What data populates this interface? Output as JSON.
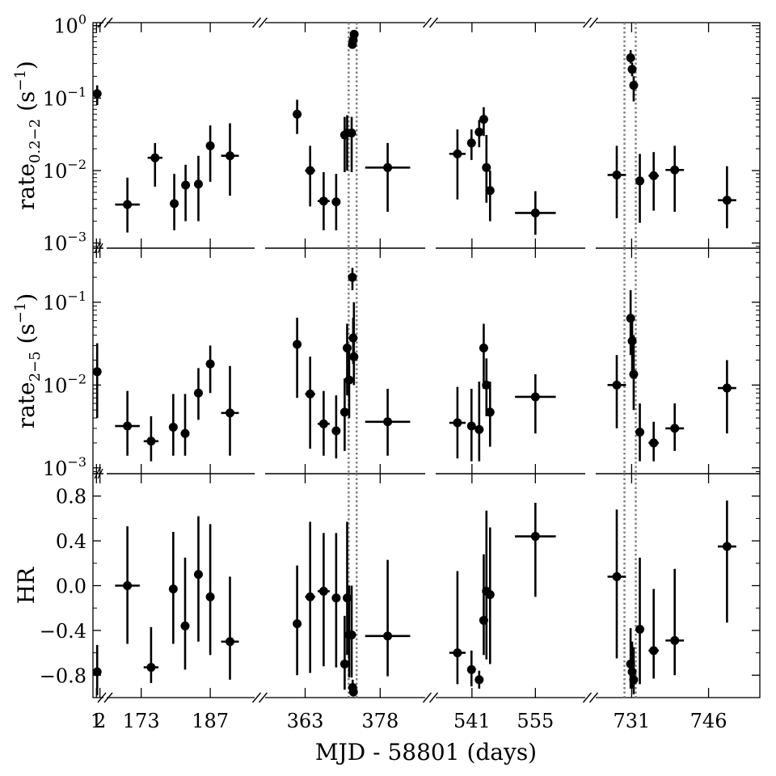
{
  "chart_data": {
    "type": "scatter",
    "xlabel": "MJD - 58801 (days)",
    "segments": [
      {
        "range": [
          0,
          3
        ],
        "ticks": [
          1,
          2
        ],
        "tick_labels": [
          "1",
          "2"
        ]
      },
      {
        "range": [
          166,
          196
        ],
        "ticks": [
          173,
          187
        ],
        "tick_labels": [
          "173",
          "187"
        ]
      },
      {
        "range": [
          355,
          387
        ],
        "ticks": [
          363,
          378
        ],
        "tick_labels": [
          "363",
          "378"
        ]
      },
      {
        "range": [
          533,
          566
        ],
        "ticks": [
          541,
          555
        ],
        "tick_labels": [
          "541",
          "555"
        ]
      },
      {
        "range": [
          724,
          756
        ],
        "ticks": [
          731,
          746
        ],
        "tick_labels": [
          "731",
          "746"
        ]
      }
    ],
    "vlines": [
      371.7,
      373.3,
      729.6,
      731.8
    ],
    "panels": [
      {
        "name": "rate_soft",
        "ylabel_main": "rate",
        "ylabel_sub": "0.2−2",
        "ylabel_unit": "(s",
        "ylabel_exp": "−1",
        "ylabel_end": ")",
        "scale": "log",
        "ylim": [
          0.00085,
          1.1
        ],
        "yticks": [
          0.001,
          0.01,
          0.1,
          1
        ],
        "ytick_labels": [
          {
            "base": "10",
            "exp": "−3"
          },
          {
            "base": "10",
            "exp": "−2"
          },
          {
            "base": "10",
            "exp": "−1"
          },
          {
            "base": "10",
            "exp": "0"
          }
        ],
        "points": [
          {
            "x": 1.2,
            "y": 0.115,
            "xerr": 0.3,
            "ylo": 0.08,
            "yhi": 0.15
          },
          {
            "x": 170.2,
            "y": 0.0034,
            "xerr": 2.5,
            "ylo": 0.0014,
            "yhi": 0.008
          },
          {
            "x": 175.8,
            "y": 0.015,
            "xerr": 1.5,
            "ylo": 0.006,
            "yhi": 0.024
          },
          {
            "x": 179.7,
            "y": 0.0035,
            "xerr": 0.5,
            "ylo": 0.0015,
            "yhi": 0.009
          },
          {
            "x": 182.0,
            "y": 0.0063,
            "xerr": 0.6,
            "ylo": 0.002,
            "yhi": 0.012
          },
          {
            "x": 184.6,
            "y": 0.0065,
            "xerr": 0.7,
            "ylo": 0.002,
            "yhi": 0.016
          },
          {
            "x": 187.0,
            "y": 0.022,
            "xerr": 0,
            "ylo": 0.007,
            "yhi": 0.042
          },
          {
            "x": 191.0,
            "y": 0.016,
            "xerr": 1.8,
            "ylo": 0.0045,
            "yhi": 0.045
          },
          {
            "x": 361.4,
            "y": 0.06,
            "xerr": 0.5,
            "ylo": 0.032,
            "yhi": 0.095
          },
          {
            "x": 364.0,
            "y": 0.01,
            "xerr": 1.0,
            "ylo": 0.0032,
            "yhi": 0.022
          },
          {
            "x": 366.7,
            "y": 0.0038,
            "xerr": 1.2,
            "ylo": 0.0015,
            "yhi": 0.0095
          },
          {
            "x": 369.2,
            "y": 0.0037,
            "xerr": 0.7,
            "ylo": 0.0015,
            "yhi": 0.009
          },
          {
            "x": 370.9,
            "y": 0.031,
            "xerr": 0.2,
            "ylo": 0.0095,
            "yhi": 0.055
          },
          {
            "x": 371.4,
            "y": 0.033,
            "xerr": 0.1,
            "ylo": 0.01,
            "yhi": 0.058
          },
          {
            "x": 372.3,
            "y": 0.033,
            "xerr": 0.1,
            "ylo": 0.0095,
            "yhi": 0.055
          },
          {
            "x": 372.45,
            "y": 0.55,
            "xerr": 0,
            "ylo": 0.48,
            "yhi": 0.62
          },
          {
            "x": 372.6,
            "y": 0.63,
            "xerr": 0,
            "ylo": 0.55,
            "yhi": 0.72
          },
          {
            "x": 372.8,
            "y": 0.76,
            "xerr": 0,
            "ylo": 0.67,
            "yhi": 0.85
          },
          {
            "x": 379.5,
            "y": 0.011,
            "xerr": 4.5,
            "ylo": 0.0027,
            "yhi": 0.024
          },
          {
            "x": 537.8,
            "y": 0.017,
            "xerr": 1.8,
            "ylo": 0.004,
            "yhi": 0.037
          },
          {
            "x": 540.9,
            "y": 0.024,
            "xerr": 0.5,
            "ylo": 0.014,
            "yhi": 0.037
          },
          {
            "x": 542.6,
            "y": 0.034,
            "xerr": 0,
            "ylo": 0.021,
            "yhi": 0.05
          },
          {
            "x": 543.6,
            "y": 0.051,
            "xerr": 0,
            "ylo": 0.03,
            "yhi": 0.075
          },
          {
            "x": 544.2,
            "y": 0.011,
            "xerr": 0,
            "ylo": 0.0036,
            "yhi": 0.031
          },
          {
            "x": 545.0,
            "y": 0.0053,
            "xerr": 0.3,
            "ylo": 0.002,
            "yhi": 0.01
          },
          {
            "x": 555.0,
            "y": 0.0026,
            "xerr": 4.5,
            "ylo": 0.0013,
            "yhi": 0.0052
          },
          {
            "x": 728.1,
            "y": 0.0087,
            "xerr": 1.8,
            "ylo": 0.0022,
            "yhi": 0.022
          },
          {
            "x": 730.8,
            "y": 0.36,
            "xerr": 0,
            "ylo": 0.3,
            "yhi": 0.46
          },
          {
            "x": 731.1,
            "y": 0.25,
            "xerr": 0,
            "ylo": 0.2,
            "yhi": 0.31
          },
          {
            "x": 731.4,
            "y": 0.15,
            "xerr": 0,
            "ylo": 0.09,
            "yhi": 0.2
          },
          {
            "x": 732.6,
            "y": 0.0072,
            "xerr": 0.5,
            "ylo": 0.0019,
            "yhi": 0.017
          },
          {
            "x": 735.3,
            "y": 0.0085,
            "xerr": 1.0,
            "ylo": 0.0028,
            "yhi": 0.018
          },
          {
            "x": 739.4,
            "y": 0.0102,
            "xerr": 1.8,
            "ylo": 0.0027,
            "yhi": 0.022
          },
          {
            "x": 749.6,
            "y": 0.0039,
            "xerr": 1.8,
            "ylo": 0.0016,
            "yhi": 0.0115
          }
        ]
      },
      {
        "name": "rate_hard",
        "ylabel_main": "rate",
        "ylabel_sub": "2−5",
        "ylabel_unit": "(s",
        "ylabel_exp": "−1",
        "ylabel_end": ")",
        "scale": "log",
        "ylim": [
          0.00085,
          0.45
        ],
        "yticks": [
          0.001,
          0.01,
          0.1
        ],
        "ytick_labels": [
          {
            "base": "10",
            "exp": "−3"
          },
          {
            "base": "10",
            "exp": "−2"
          },
          {
            "base": "10",
            "exp": "−1"
          }
        ],
        "points": [
          {
            "x": 1.2,
            "y": 0.0145,
            "xerr": 0.3,
            "ylo": 0.004,
            "yhi": 0.032
          },
          {
            "x": 170.2,
            "y": 0.0032,
            "xerr": 2.5,
            "ylo": 0.0014,
            "yhi": 0.0085
          },
          {
            "x": 175.0,
            "y": 0.0021,
            "xerr": 1.5,
            "ylo": 0.0012,
            "yhi": 0.0042
          },
          {
            "x": 179.5,
            "y": 0.0031,
            "xerr": 0.5,
            "ylo": 0.0014,
            "yhi": 0.0078
          },
          {
            "x": 181.9,
            "y": 0.0026,
            "xerr": 0.6,
            "ylo": 0.0014,
            "yhi": 0.0078
          },
          {
            "x": 184.6,
            "y": 0.008,
            "xerr": 0.7,
            "ylo": 0.0038,
            "yhi": 0.016
          },
          {
            "x": 187.0,
            "y": 0.018,
            "xerr": 0,
            "ylo": 0.008,
            "yhi": 0.03
          },
          {
            "x": 191.0,
            "y": 0.0046,
            "xerr": 1.8,
            "ylo": 0.0014,
            "yhi": 0.017
          },
          {
            "x": 361.4,
            "y": 0.031,
            "xerr": 0.5,
            "ylo": 0.007,
            "yhi": 0.065
          },
          {
            "x": 364.0,
            "y": 0.0078,
            "xerr": 1.0,
            "ylo": 0.0017,
            "yhi": 0.022
          },
          {
            "x": 366.7,
            "y": 0.0034,
            "xerr": 1.2,
            "ylo": 0.0014,
            "yhi": 0.0085
          },
          {
            "x": 369.2,
            "y": 0.0028,
            "xerr": 0.7,
            "ylo": 0.0013,
            "yhi": 0.0075
          },
          {
            "x": 370.9,
            "y": 0.0047,
            "xerr": 0.2,
            "ylo": 0.0016,
            "yhi": 0.012
          },
          {
            "x": 371.4,
            "y": 0.028,
            "xerr": 0.1,
            "ylo": 0.0075,
            "yhi": 0.055
          },
          {
            "x": 371.8,
            "y": 0.0115,
            "xerr": 0,
            "ylo": 0.004,
            "yhi": 0.027
          },
          {
            "x": 372.45,
            "y": 0.2,
            "xerr": 0,
            "ylo": 0.14,
            "yhi": 0.26
          },
          {
            "x": 372.6,
            "y": 0.037,
            "xerr": 0,
            "ylo": 0.018,
            "yhi": 0.065
          },
          {
            "x": 372.75,
            "y": 0.022,
            "xerr": 0,
            "ylo": 0.01,
            "yhi": 0.1
          },
          {
            "x": 379.5,
            "y": 0.0036,
            "xerr": 4.5,
            "ylo": 0.0014,
            "yhi": 0.009
          },
          {
            "x": 537.8,
            "y": 0.0035,
            "xerr": 1.8,
            "ylo": 0.0013,
            "yhi": 0.0095
          },
          {
            "x": 540.9,
            "y": 0.0032,
            "xerr": 0.5,
            "ylo": 0.0012,
            "yhi": 0.009
          },
          {
            "x": 542.6,
            "y": 0.0029,
            "xerr": 0,
            "ylo": 0.0012,
            "yhi": 0.011
          },
          {
            "x": 543.6,
            "y": 0.028,
            "xerr": 0,
            "ylo": 0.009,
            "yhi": 0.055
          },
          {
            "x": 544.2,
            "y": 0.01,
            "xerr": 0,
            "ylo": 0.0042,
            "yhi": 0.021
          },
          {
            "x": 545.0,
            "y": 0.0047,
            "xerr": 0.3,
            "ylo": 0.0018,
            "yhi": 0.011
          },
          {
            "x": 555.0,
            "y": 0.0072,
            "xerr": 4.5,
            "ylo": 0.0026,
            "yhi": 0.0135
          },
          {
            "x": 728.1,
            "y": 0.01,
            "xerr": 1.8,
            "ylo": 0.003,
            "yhi": 0.023
          },
          {
            "x": 730.8,
            "y": 0.064,
            "xerr": 0,
            "ylo": 0.023,
            "yhi": 0.14
          },
          {
            "x": 731.1,
            "y": 0.034,
            "xerr": 0,
            "ylo": 0.012,
            "yhi": 0.07
          },
          {
            "x": 731.4,
            "y": 0.0135,
            "xerr": 0,
            "ylo": 0.005,
            "yhi": 0.04
          },
          {
            "x": 732.6,
            "y": 0.0027,
            "xerr": 0.5,
            "ylo": 0.0012,
            "yhi": 0.006
          },
          {
            "x": 735.3,
            "y": 0.002,
            "xerr": 1.0,
            "ylo": 0.0012,
            "yhi": 0.0036
          },
          {
            "x": 739.4,
            "y": 0.003,
            "xerr": 1.8,
            "ylo": 0.0016,
            "yhi": 0.006
          },
          {
            "x": 749.6,
            "y": 0.0092,
            "xerr": 1.8,
            "ylo": 0.0026,
            "yhi": 0.02
          }
        ]
      },
      {
        "name": "hr",
        "ylabel_main": "HR",
        "scale": "linear",
        "ylim": [
          -1.0,
          1.0
        ],
        "yticks": [
          -0.8,
          -0.4,
          0.0,
          0.4,
          0.8
        ],
        "ytick_labels": [
          {
            "base": "−0.8"
          },
          {
            "base": "−0.4"
          },
          {
            "base": "0.0"
          },
          {
            "base": "0.4"
          },
          {
            "base": "0.8"
          }
        ],
        "points": [
          {
            "x": 1.2,
            "y": -0.77,
            "xerr": 0.3,
            "ylo": -0.98,
            "yhi": -0.53
          },
          {
            "x": 170.2,
            "y": 0.0,
            "xerr": 2.5,
            "ylo": -0.52,
            "yhi": 0.53
          },
          {
            "x": 175.0,
            "y": -0.73,
            "xerr": 1.5,
            "ylo": -0.87,
            "yhi": -0.37
          },
          {
            "x": 179.5,
            "y": -0.03,
            "xerr": 0.5,
            "ylo": -0.52,
            "yhi": 0.48
          },
          {
            "x": 181.9,
            "y": -0.36,
            "xerr": 0.6,
            "ylo": -0.75,
            "yhi": 0.25
          },
          {
            "x": 184.6,
            "y": 0.1,
            "xerr": 0.7,
            "ylo": -0.5,
            "yhi": 0.62
          },
          {
            "x": 187.0,
            "y": -0.1,
            "xerr": 0,
            "ylo": -0.62,
            "yhi": 0.55
          },
          {
            "x": 191.0,
            "y": -0.5,
            "xerr": 1.8,
            "ylo": -0.84,
            "yhi": 0.08
          },
          {
            "x": 361.4,
            "y": -0.34,
            "xerr": 0.5,
            "ylo": -0.8,
            "yhi": 0.18
          },
          {
            "x": 364.0,
            "y": -0.1,
            "xerr": 1.0,
            "ylo": -0.78,
            "yhi": 0.57
          },
          {
            "x": 366.7,
            "y": -0.05,
            "xerr": 1.2,
            "ylo": -0.72,
            "yhi": 0.47
          },
          {
            "x": 369.2,
            "y": -0.11,
            "xerr": 0.7,
            "ylo": -0.73,
            "yhi": 0.47
          },
          {
            "x": 370.9,
            "y": -0.7,
            "xerr": 0.2,
            "ylo": -0.93,
            "yhi": -0.27
          },
          {
            "x": 371.4,
            "y": -0.11,
            "xerr": 0.1,
            "ylo": -0.62,
            "yhi": 0.57
          },
          {
            "x": 371.8,
            "y": -0.44,
            "xerr": 0,
            "ylo": -0.82,
            "yhi": 0.0
          },
          {
            "x": 372.3,
            "y": -0.44,
            "xerr": 0.1,
            "ylo": -0.82,
            "yhi": 0.0
          },
          {
            "x": 372.5,
            "y": -0.91,
            "xerr": 0,
            "ylo": -0.97,
            "yhi": -0.84
          },
          {
            "x": 372.65,
            "y": -0.95,
            "xerr": 0,
            "ylo": -0.99,
            "yhi": -0.9
          },
          {
            "x": 379.5,
            "y": -0.45,
            "xerr": 4.5,
            "ylo": -0.81,
            "yhi": 0.23
          },
          {
            "x": 537.8,
            "y": -0.6,
            "xerr": 1.8,
            "ylo": -0.88,
            "yhi": 0.13
          },
          {
            "x": 540.9,
            "y": -0.75,
            "xerr": 0.5,
            "ylo": -0.9,
            "yhi": -0.58
          },
          {
            "x": 542.6,
            "y": -0.84,
            "xerr": 0,
            "ylo": -0.92,
            "yhi": -0.76
          },
          {
            "x": 543.6,
            "y": -0.31,
            "xerr": 0,
            "ylo": -0.62,
            "yhi": 0.28
          },
          {
            "x": 544.2,
            "y": -0.05,
            "xerr": 0,
            "ylo": -0.66,
            "yhi": 0.67
          },
          {
            "x": 545.0,
            "y": -0.08,
            "xerr": 0.3,
            "ylo": -0.7,
            "yhi": 0.52
          },
          {
            "x": 555.0,
            "y": 0.44,
            "xerr": 4.5,
            "ylo": -0.1,
            "yhi": 0.74
          },
          {
            "x": 728.1,
            "y": 0.08,
            "xerr": 1.8,
            "ylo": -0.65,
            "yhi": 0.68
          },
          {
            "x": 730.8,
            "y": -0.7,
            "xerr": 0,
            "ylo": -0.92,
            "yhi": -0.38
          },
          {
            "x": 731.1,
            "y": -0.77,
            "xerr": 0,
            "ylo": -0.92,
            "yhi": -0.5
          },
          {
            "x": 731.4,
            "y": -0.84,
            "xerr": 0,
            "ylo": -0.97,
            "yhi": -0.55
          },
          {
            "x": 732.6,
            "y": -0.39,
            "xerr": 0.5,
            "ylo": -0.88,
            "yhi": 0.25
          },
          {
            "x": 735.3,
            "y": -0.58,
            "xerr": 1.0,
            "ylo": -0.83,
            "yhi": -0.03
          },
          {
            "x": 739.4,
            "y": -0.49,
            "xerr": 1.8,
            "ylo": -0.8,
            "yhi": 0.15
          },
          {
            "x": 749.6,
            "y": 0.35,
            "xerr": 1.8,
            "ylo": -0.33,
            "yhi": 0.76
          }
        ]
      }
    ]
  }
}
